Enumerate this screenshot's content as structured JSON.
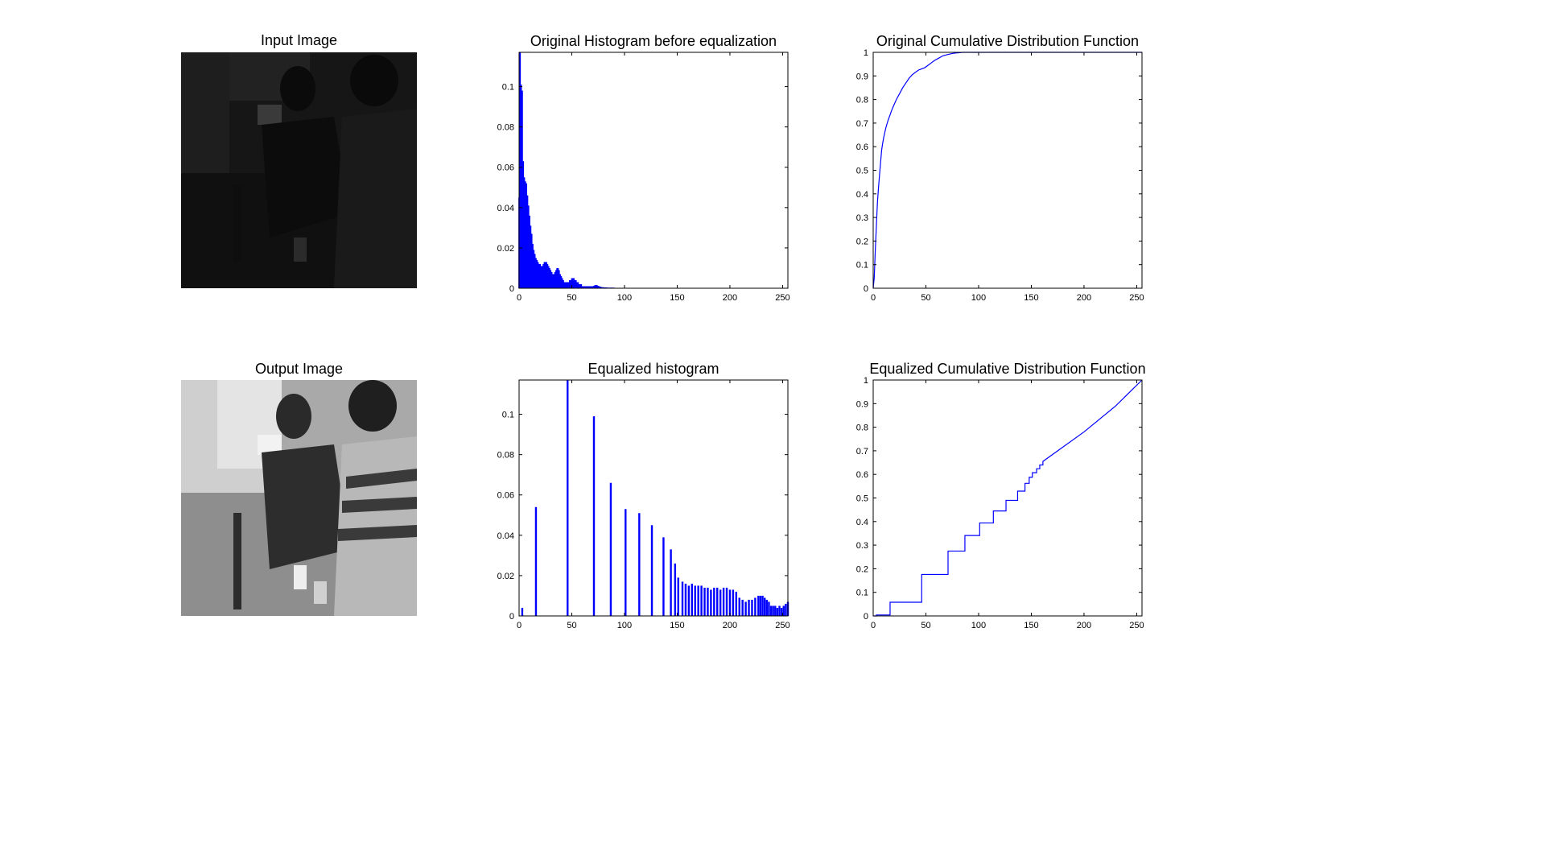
{
  "figure": {
    "input_image_title": "Input Image",
    "output_image_title": "Output Image"
  },
  "colors": {
    "series": "#0000ff",
    "axes": "#000000",
    "background": "#ffffff"
  },
  "chart_data": [
    {
      "id": "orig-hist",
      "type": "bar",
      "title": "Original Histogram before equalization",
      "xlabel": "",
      "ylabel": "",
      "xlim": [
        0,
        255
      ],
      "ylim": [
        0,
        0.117
      ],
      "xticks": [
        0,
        50,
        100,
        150,
        200,
        250
      ],
      "yticks": [
        0,
        0.02,
        0.04,
        0.06,
        0.08,
        0.1
      ],
      "grid": false,
      "x": [
        0,
        1,
        2,
        3,
        4,
        5,
        6,
        7,
        8,
        9,
        10,
        11,
        12,
        13,
        14,
        15,
        16,
        17,
        18,
        19,
        20,
        21,
        22,
        23,
        24,
        25,
        26,
        27,
        28,
        29,
        30,
        31,
        32,
        33,
        34,
        35,
        36,
        37,
        38,
        39,
        40,
        41,
        42,
        43,
        44,
        45,
        46,
        47,
        48,
        49,
        50,
        51,
        52,
        53,
        54,
        55,
        56,
        57,
        58,
        59,
        60,
        61,
        62,
        63,
        64,
        65,
        66,
        67,
        68,
        69,
        70,
        71,
        72,
        73,
        74,
        75,
        76,
        77,
        78,
        79,
        80,
        81,
        82,
        83,
        84,
        85,
        86,
        87,
        88,
        89,
        90,
        95,
        100,
        105,
        110,
        115,
        120,
        125,
        130,
        135,
        140,
        145,
        150,
        155,
        160,
        165,
        170,
        175,
        180,
        185,
        190,
        195,
        200,
        205,
        210,
        215,
        220,
        225,
        230,
        235,
        240,
        245,
        250,
        255
      ],
      "values": [
        0.045,
        0.118,
        0.101,
        0.098,
        0.063,
        0.055,
        0.053,
        0.052,
        0.046,
        0.041,
        0.036,
        0.031,
        0.027,
        0.022,
        0.019,
        0.017,
        0.015,
        0.014,
        0.013,
        0.012,
        0.012,
        0.011,
        0.011,
        0.012,
        0.013,
        0.013,
        0.013,
        0.012,
        0.011,
        0.01,
        0.009,
        0.008,
        0.007,
        0.007,
        0.008,
        0.009,
        0.01,
        0.01,
        0.009,
        0.007,
        0.006,
        0.005,
        0.004,
        0.003,
        0.003,
        0.003,
        0.003,
        0.003,
        0.004,
        0.004,
        0.005,
        0.005,
        0.005,
        0.004,
        0.004,
        0.003,
        0.003,
        0.002,
        0.002,
        0.002,
        0.001,
        0.001,
        0.001,
        0.001,
        0.001,
        0.001,
        0.001,
        0.001,
        0.001,
        0.001,
        0.001,
        0.0012,
        0.0015,
        0.0016,
        0.0015,
        0.0012,
        0.001,
        0.0008,
        0.0006,
        0.0005,
        0.0005,
        0.0004,
        0.0004,
        0.0004,
        0.0003,
        0.0003,
        0.0003,
        0.0003,
        0.0003,
        0.0003,
        0.0003,
        0.0002,
        0.0002,
        0.0002,
        0.0002,
        0.0002,
        0.0002,
        0.0002,
        0.0002,
        0.0002,
        0.0002,
        0.0002,
        0.0002,
        0.0002,
        0.0002,
        0.0002,
        0.0002,
        0.0002,
        0.0002,
        0.0002,
        0.0002,
        0.0002,
        0.0002,
        0.0001,
        0.0001,
        0.0001,
        0.0001,
        0.0001,
        0.0001,
        0.0001,
        0.0001,
        0.0001,
        0.0001,
        0.0001
      ]
    },
    {
      "id": "orig-cdf",
      "type": "line",
      "title": "Original Cumulative Distribution Function",
      "xlabel": "",
      "ylabel": "",
      "xlim": [
        0,
        255
      ],
      "ylim": [
        0,
        1
      ],
      "xticks": [
        0,
        50,
        100,
        150,
        200,
        250
      ],
      "yticks": [
        0,
        0.1,
        0.2,
        0.3,
        0.4,
        0.5,
        0.6,
        0.7,
        0.8,
        0.9,
        1
      ],
      "grid": false,
      "x": [
        0,
        1,
        2,
        3,
        4,
        5,
        6,
        7,
        8,
        9,
        10,
        12,
        14,
        16,
        18,
        20,
        22,
        25,
        28,
        31,
        34,
        37,
        40,
        43,
        46,
        49,
        52,
        55,
        58,
        62,
        66,
        70,
        75,
        80,
        85,
        255
      ],
      "values": [
        0,
        0.045,
        0.163,
        0.264,
        0.362,
        0.425,
        0.48,
        0.533,
        0.585,
        0.615,
        0.64,
        0.68,
        0.71,
        0.735,
        0.76,
        0.78,
        0.8,
        0.825,
        0.85,
        0.87,
        0.89,
        0.905,
        0.915,
        0.925,
        0.93,
        0.935,
        0.945,
        0.955,
        0.965,
        0.975,
        0.985,
        0.99,
        0.995,
        0.998,
        1,
        1
      ]
    },
    {
      "id": "eq-hist",
      "type": "bar",
      "title": "Equalized histogram",
      "xlabel": "",
      "ylabel": "",
      "xlim": [
        0,
        255
      ],
      "ylim": [
        0,
        0.117
      ],
      "xticks": [
        0,
        50,
        100,
        150,
        200,
        250
      ],
      "yticks": [
        0,
        0.02,
        0.04,
        0.06,
        0.08,
        0.1
      ],
      "grid": false,
      "x": [
        3,
        16,
        46,
        71,
        87,
        101,
        114,
        126,
        137,
        144,
        148,
        151,
        155,
        158,
        161,
        164,
        167,
        170,
        173,
        176,
        179,
        182,
        185,
        188,
        191,
        194,
        197,
        200,
        203,
        206,
        209,
        212,
        215,
        218,
        221,
        224,
        227,
        229,
        231,
        233,
        235,
        237,
        239,
        241,
        243,
        245,
        247,
        249,
        251,
        253,
        255
      ],
      "values": [
        0.004,
        0.054,
        0.118,
        0.099,
        0.066,
        0.053,
        0.051,
        0.045,
        0.039,
        0.033,
        0.026,
        0.019,
        0.017,
        0.016,
        0.015,
        0.016,
        0.015,
        0.015,
        0.015,
        0.014,
        0.014,
        0.013,
        0.014,
        0.014,
        0.013,
        0.014,
        0.014,
        0.013,
        0.013,
        0.012,
        0.009,
        0.008,
        0.007,
        0.008,
        0.008,
        0.009,
        0.01,
        0.01,
        0.01,
        0.009,
        0.008,
        0.007,
        0.005,
        0.005,
        0.005,
        0.004,
        0.005,
        0.004,
        0.005,
        0.006,
        0.007
      ]
    },
    {
      "id": "eq-cdf",
      "type": "line",
      "title": "Equalized Cumulative Distribution Function",
      "xlabel": "",
      "ylabel": "",
      "xlim": [
        0,
        255
      ],
      "ylim": [
        0,
        1
      ],
      "xticks": [
        0,
        50,
        100,
        150,
        200,
        250
      ],
      "yticks": [
        0,
        0.1,
        0.2,
        0.3,
        0.4,
        0.5,
        0.6,
        0.7,
        0.8,
        0.9,
        1
      ],
      "grid": false,
      "x": [
        0,
        3,
        3,
        16,
        16,
        46,
        46,
        71,
        71,
        87,
        87,
        101,
        101,
        114,
        114,
        126,
        126,
        137,
        137,
        144,
        144,
        148,
        148,
        151,
        151,
        155,
        155,
        158,
        158,
        161,
        161,
        200,
        230,
        255
      ],
      "values": [
        0,
        0,
        0.004,
        0.004,
        0.058,
        0.058,
        0.176,
        0.176,
        0.275,
        0.275,
        0.341,
        0.341,
        0.394,
        0.394,
        0.445,
        0.445,
        0.49,
        0.49,
        0.529,
        0.529,
        0.562,
        0.562,
        0.588,
        0.588,
        0.607,
        0.607,
        0.624,
        0.624,
        0.64,
        0.64,
        0.655,
        0.78,
        0.89,
        1
      ]
    }
  ]
}
